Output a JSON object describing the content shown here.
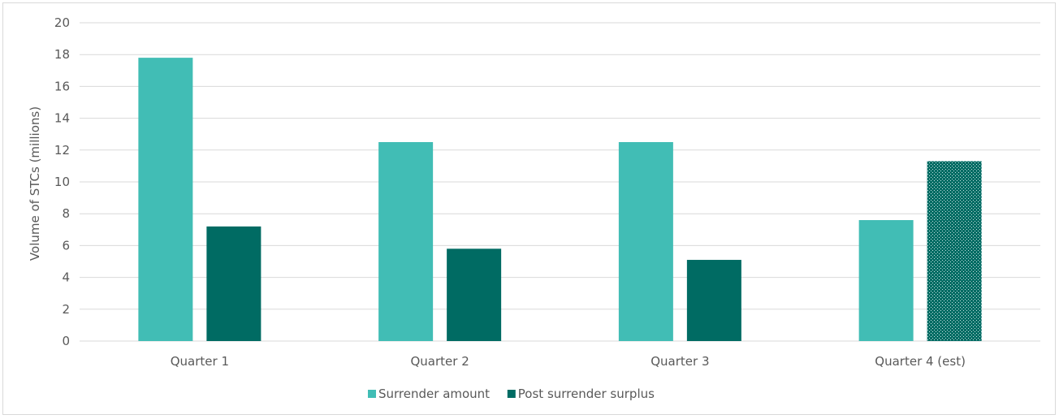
{
  "chart_data": {
    "type": "bar",
    "title": "",
    "xlabel": "",
    "ylabel": "Volume of STCs (millions)",
    "ylim": [
      0,
      20
    ],
    "yticks": [
      0,
      2,
      4,
      6,
      8,
      10,
      12,
      14,
      16,
      18,
      20
    ],
    "grid": true,
    "legend_position": "bottom",
    "categories": [
      "Quarter 1",
      "Quarter 2",
      "Quarter 3",
      "Quarter 4 (est)"
    ],
    "series": [
      {
        "name": "Surrender amount",
        "color": "#41bdb5",
        "values": [
          17.8,
          12.5,
          12.5,
          7.6
        ]
      },
      {
        "name": "Post surrender surplus",
        "color": "#006b63",
        "values": [
          7.2,
          5.8,
          5.1,
          11.3
        ],
        "estimated_pattern_on": [
          "Quarter 4 (est)"
        ]
      }
    ]
  }
}
